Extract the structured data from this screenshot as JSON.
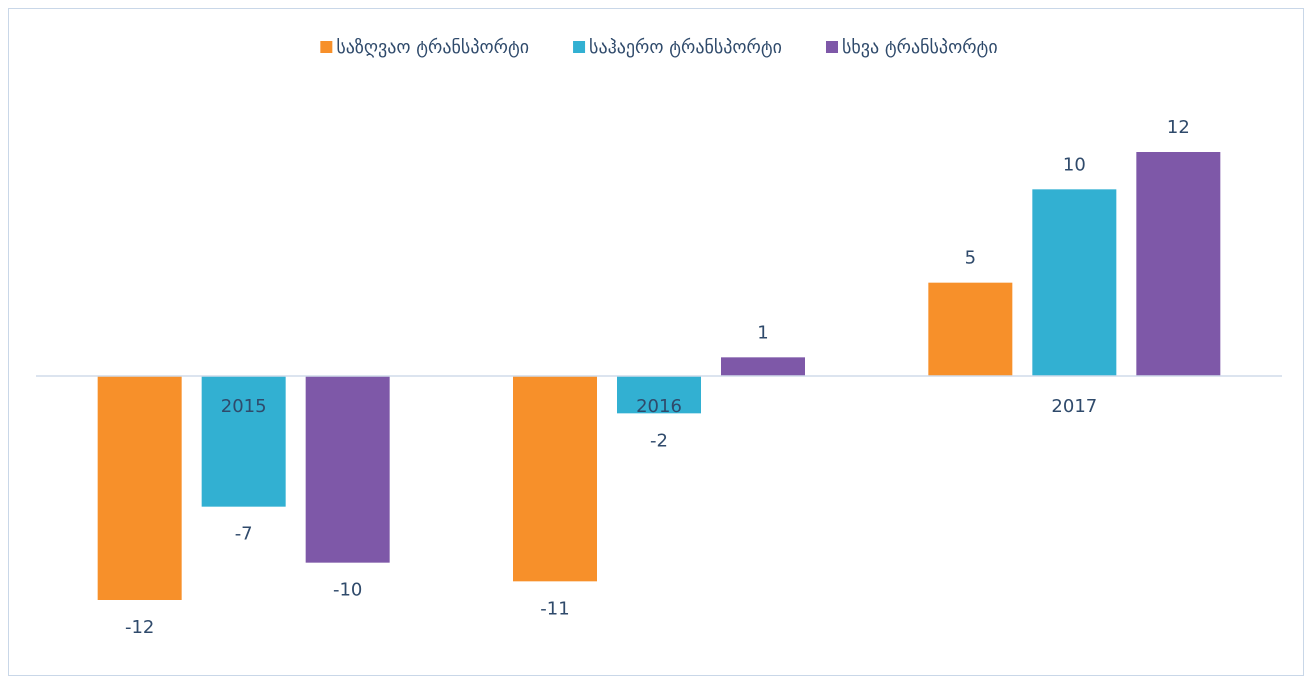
{
  "chart_data": {
    "type": "bar",
    "categories": [
      "2015",
      "2016",
      "2017"
    ],
    "series": [
      {
        "name": "საზღვაო ტრანსპორტი",
        "color": "#f7902a",
        "values": [
          -12,
          -11,
          5
        ]
      },
      {
        "name": "საჰაერო ტრანსპორტი",
        "color": "#32b0d2",
        "values": [
          -7,
          -2,
          10
        ]
      },
      {
        "name": "სხვა ტრანსპორტი",
        "color": "#7e58a8",
        "values": [
          -10,
          1,
          12
        ]
      }
    ],
    "ylim": [
      -15,
      15
    ],
    "grid": false,
    "legend": "top"
  }
}
